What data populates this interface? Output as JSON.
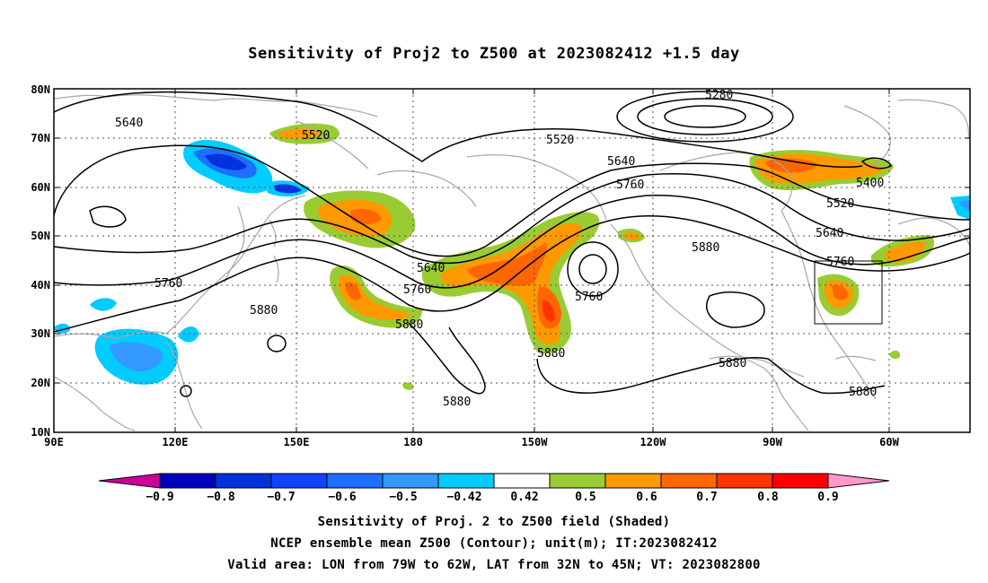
{
  "title": "Sensitivity of Proj2 to Z500 at 2023082412 +1.5 day",
  "lat_labels": [
    "80N",
    "70N",
    "60N",
    "50N",
    "40N",
    "30N",
    "20N",
    "10N"
  ],
  "lon_labels": [
    "90E",
    "120E",
    "150E",
    "180",
    "150W",
    "120W",
    "90W",
    "60W"
  ],
  "contour_labels": [
    {
      "text": "5280"
    },
    {
      "text": "5640"
    },
    {
      "text": "5520"
    },
    {
      "text": "5520"
    },
    {
      "text": "5640"
    },
    {
      "text": "5760"
    },
    {
      "text": "5400"
    },
    {
      "text": "5520"
    },
    {
      "text": "5880"
    },
    {
      "text": "5640"
    },
    {
      "text": "5760"
    },
    {
      "text": "5640"
    },
    {
      "text": "5760"
    },
    {
      "text": "5760"
    },
    {
      "text": "5760"
    },
    {
      "text": "5880"
    },
    {
      "text": "5880"
    },
    {
      "text": "5880"
    },
    {
      "text": "5880"
    },
    {
      "text": "5880"
    },
    {
      "text": "5880"
    }
  ],
  "colorbar": {
    "colors": [
      "#0000c0",
      "#0033dd",
      "#1144ff",
      "#1e6fff",
      "#3399ff",
      "#00ccff",
      "#ffffff",
      "#99cc33",
      "#ff9900",
      "#ff6600",
      "#ff3300",
      "#ff0000"
    ],
    "low_extend_color": "#cc0099",
    "high_extend_color": "#ff99cc",
    "labels": [
      "−0.9",
      "−0.8",
      "−0.7",
      "−0.6",
      "−0.5",
      "−0.42",
      "0.42",
      "0.5",
      "0.6",
      "0.7",
      "0.8",
      "0.9"
    ]
  },
  "footer": {
    "line1": "Sensitivity of Proj. 2 to Z500 field (Shaded)",
    "line2": "NCEP ensemble mean Z500 (Contour); unit(m); IT:2023082412",
    "line3": "Valid area: LON from 79W to 62W, LAT from 32N to 45N; VT: 2023082800"
  }
}
